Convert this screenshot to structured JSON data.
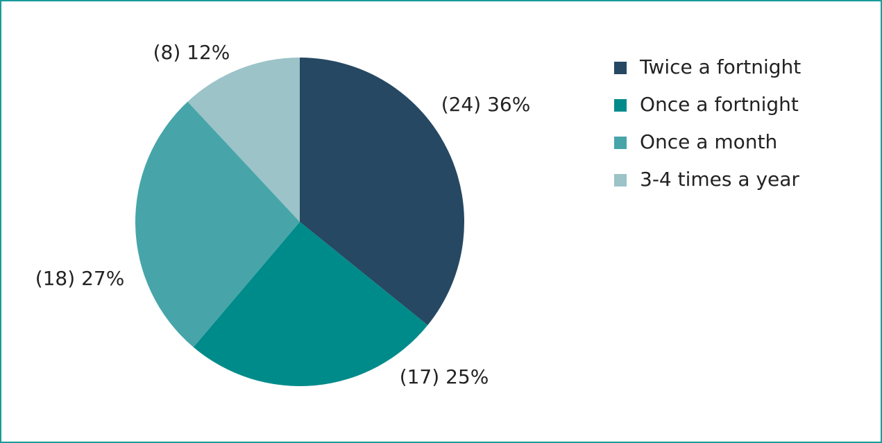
{
  "chart_data": {
    "type": "pie",
    "categories": [
      "Twice a fortnight",
      "Once a fortnight",
      "Once a month",
      "3-4 times a year"
    ],
    "values": [
      24,
      17,
      18,
      8
    ],
    "value_labels": [
      "(24) 36%",
      "(17) 25%",
      "(18) 27%",
      "(8) 12%"
    ],
    "colors": [
      "#264862",
      "#008b8b",
      "#47a5a9",
      "#9bc3c8"
    ],
    "legend": "right"
  }
}
